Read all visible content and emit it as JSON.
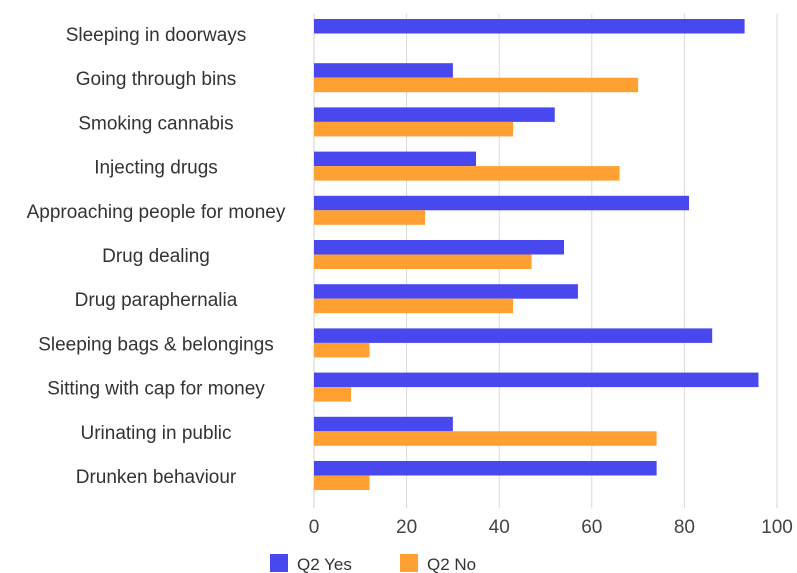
{
  "chart_data": {
    "type": "bar",
    "orientation": "horizontal",
    "categories": [
      "Sleeping in doorways",
      "Going through bins",
      "Smoking cannabis",
      "Injecting drugs",
      "Approaching people for money",
      "Drug dealing",
      "Drug paraphernalia",
      "Sleeping bags & belongings",
      "Sitting with cap for money",
      "Urinating in public",
      "Drunken behaviour"
    ],
    "series": [
      {
        "name": "Q2 Yes",
        "color": "#4848ee",
        "values": [
          93,
          30,
          52,
          35,
          81,
          54,
          57,
          86,
          96,
          30,
          74
        ]
      },
      {
        "name": "Q2 No",
        "color": "#ffa033",
        "values": [
          null,
          70,
          43,
          66,
          24,
          47,
          43,
          12,
          8,
          74,
          12
        ]
      }
    ],
    "xlim": [
      0,
      100
    ],
    "xticks": [
      "0",
      "20",
      "40",
      "60",
      "80",
      "100"
    ],
    "xlabel": "",
    "ylabel": "",
    "title": "",
    "grid": "vertical",
    "legend_position": "bottom"
  }
}
